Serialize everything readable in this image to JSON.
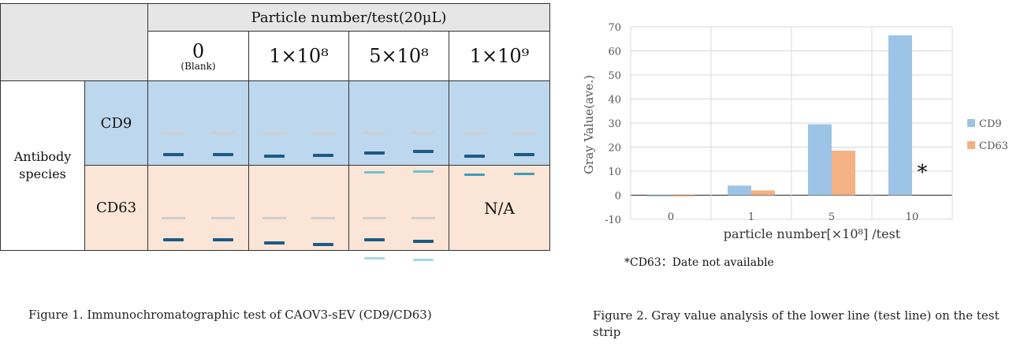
{
  "figure1": {
    "header_top": "Particle number/test(20μL)",
    "columns": [
      {
        "main": "0",
        "sub": "(Blank)"
      },
      {
        "main": "1×10⁸",
        "sub": ""
      },
      {
        "main": "5×10⁸",
        "sub": ""
      },
      {
        "main": "1×10⁹",
        "sub": ""
      }
    ],
    "species_label": "Antibody species",
    "rows": [
      {
        "label": "CD9",
        "cells": [
          "strip",
          "strip",
          "strip",
          "strip"
        ]
      },
      {
        "label": "CD63",
        "cells": [
          "strip",
          "strip",
          "strip",
          "N/A"
        ]
      }
    ],
    "caption": "Figure 1. Immunochromatographic test of CAOV3-sEV (CD9/CD63)"
  },
  "figure2": {
    "note": "*CD63：Date not  available",
    "caption": "Figure 2. Gray value analysis of the lower line (test line) on the test strip"
  },
  "chart_data": {
    "type": "bar",
    "categories": [
      "0",
      "1",
      "5",
      "10"
    ],
    "series": [
      {
        "name": "CD9",
        "values": [
          -0.5,
          4,
          29.5,
          66.5
        ],
        "color": "#9dc3e6"
      },
      {
        "name": "CD63",
        "values": [
          -0.5,
          2,
          18.5,
          null
        ],
        "color": "#f4b183"
      }
    ],
    "ylim": [
      -10,
      70
    ],
    "yticks": [
      -10,
      0,
      10,
      20,
      30,
      40,
      50,
      60,
      70
    ],
    "xlabel": "particle number[×10⁸] /test",
    "ylabel": "Gray Value(ave.)",
    "annotation": "*",
    "grid": true,
    "legend": "right"
  }
}
